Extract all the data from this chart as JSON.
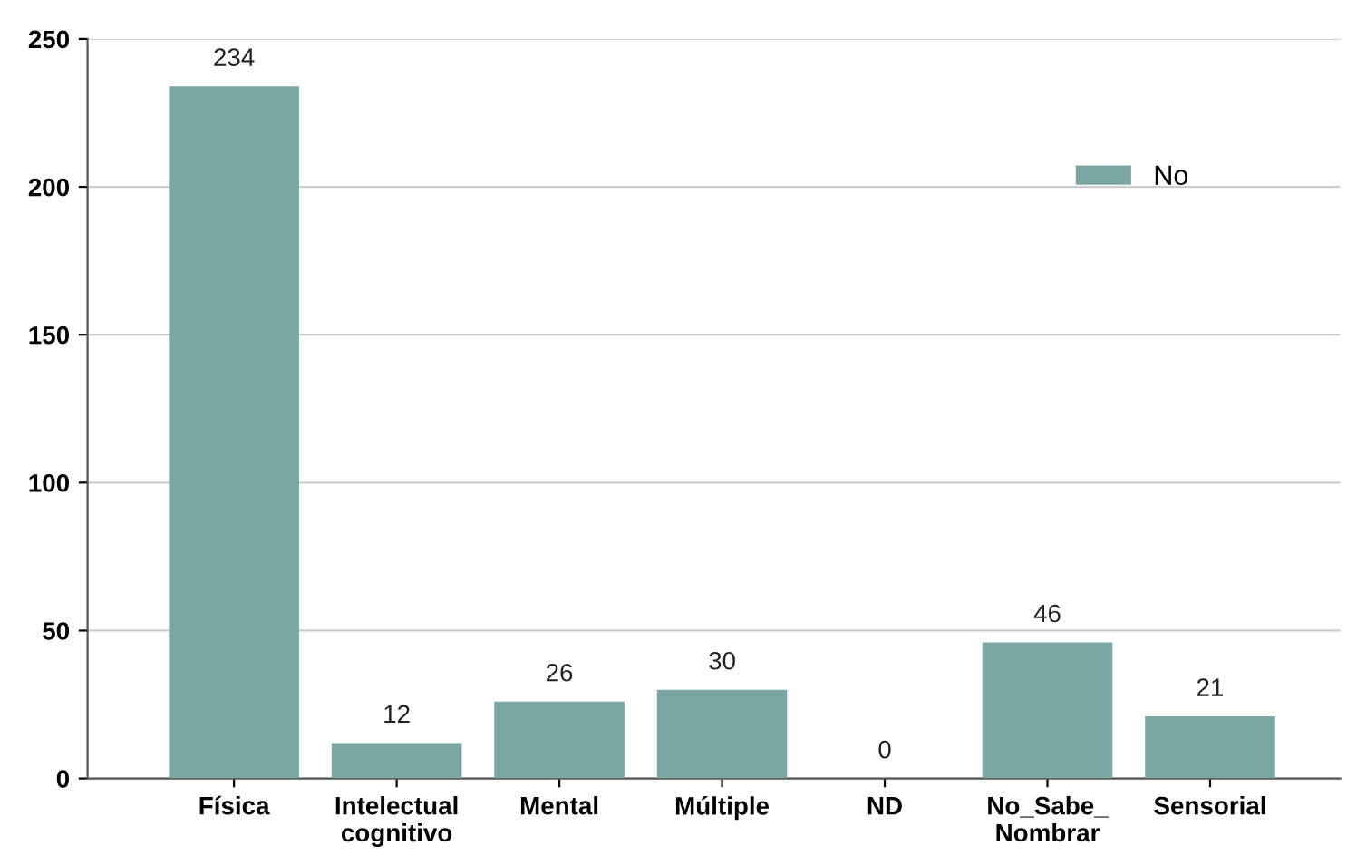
{
  "chart_data": {
    "type": "bar",
    "categories": [
      "Física",
      "Intelectual\ncognitivo",
      "Mental",
      "Múltiple",
      "ND",
      "No_Sabe_\nNombrar",
      "Sensorial"
    ],
    "series": [
      {
        "name": "No",
        "color": "#7aa6a3",
        "values": [
          234,
          12,
          26,
          30,
          0,
          46,
          21
        ]
      }
    ],
    "ylim": [
      0,
      250
    ],
    "yticks": [
      0,
      50,
      100,
      150,
      200,
      250
    ],
    "grid": "y",
    "legend": "top right",
    "data_labels": true
  }
}
